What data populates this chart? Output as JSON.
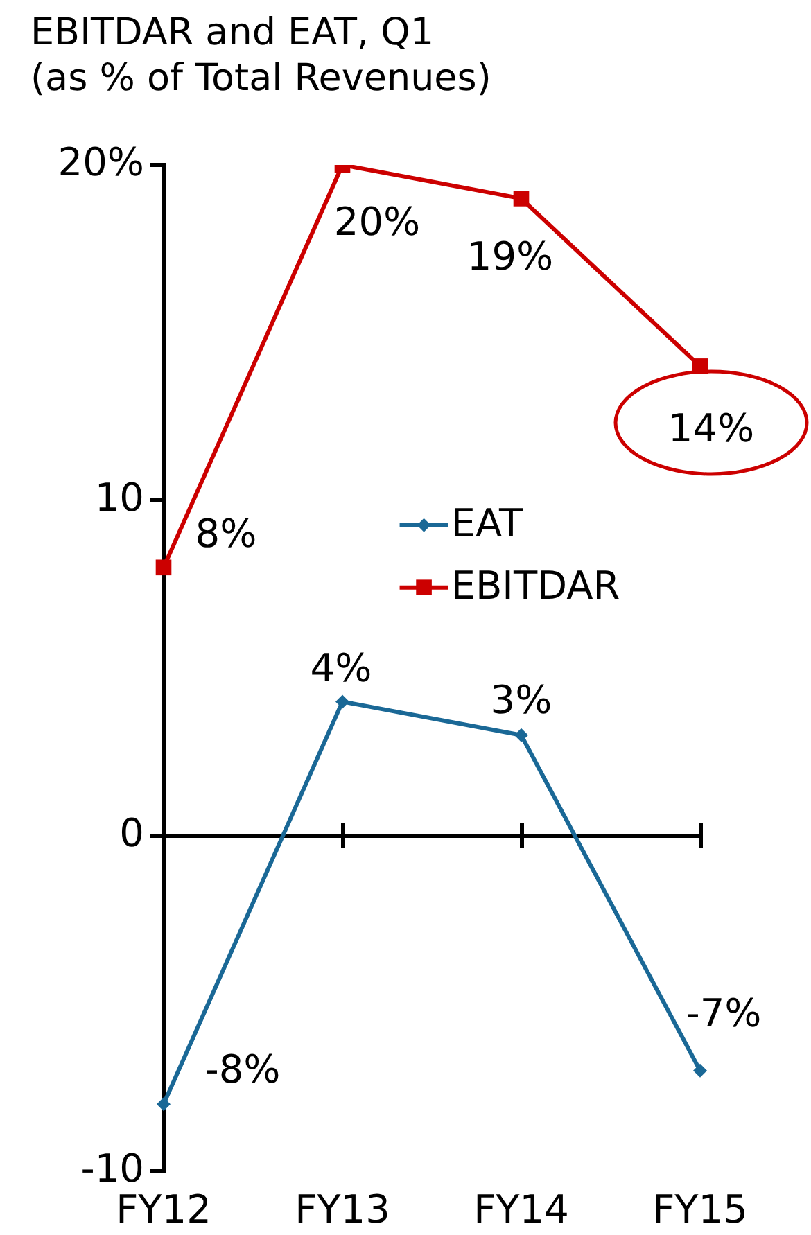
{
  "chart_data": {
    "type": "line",
    "title": "EBITDAR and EAT, Q1",
    "subtitle": "(as % of Total Revenues)",
    "categories": [
      "FY12",
      "FY13",
      "FY14",
      "FY15"
    ],
    "series": [
      {
        "name": "EAT",
        "color": "#1a6896",
        "values": [
          -8,
          4,
          3,
          -7
        ],
        "marker": "diamond",
        "value_labels": [
          "-8%",
          "4%",
          "3%",
          "-7%"
        ]
      },
      {
        "name": "EBITDAR",
        "color": "#cc0000",
        "values": [
          8,
          20,
          19,
          14
        ],
        "marker": "square",
        "value_labels": [
          "8%",
          "20%",
          "19%",
          "14%"
        ]
      }
    ],
    "ylim": [
      -10,
      20
    ],
    "yticks": [
      -10,
      0,
      10,
      {
        "value": 20,
        "label": "20%"
      }
    ],
    "ref_lines": [
      {
        "axis": "y",
        "value": 0,
        "color": "#000000"
      }
    ],
    "grid": false,
    "legend": "center"
  }
}
